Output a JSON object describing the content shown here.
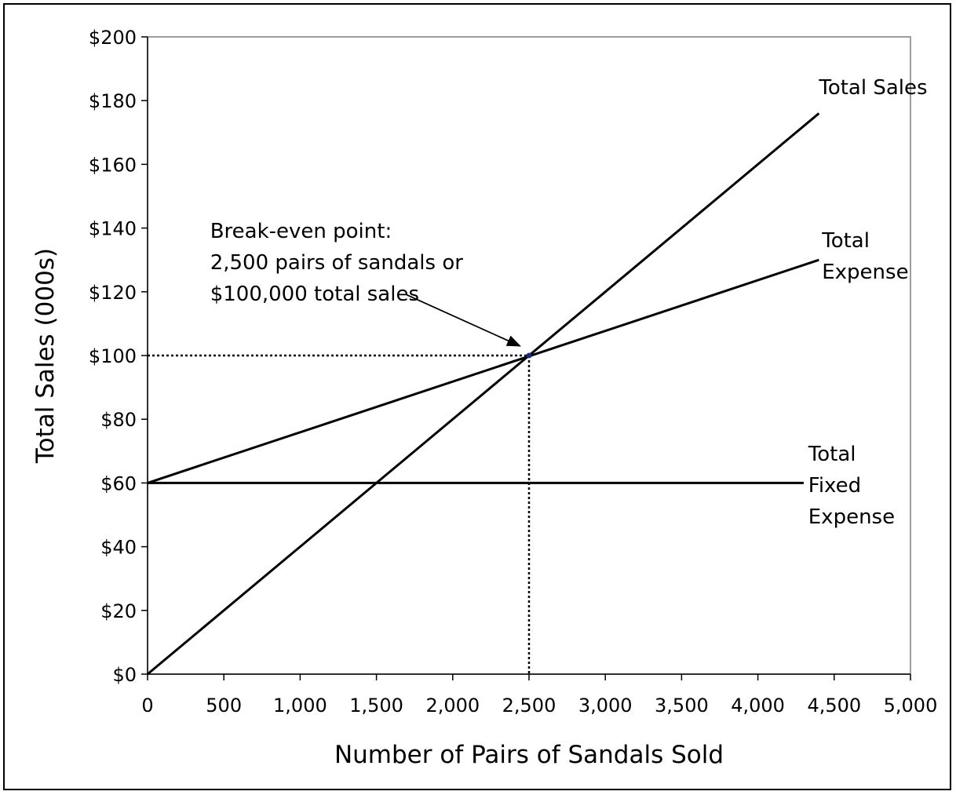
{
  "chart_data": {
    "type": "line",
    "title": "",
    "xlabel": "Number of Pairs of Sandals Sold",
    "ylabel": "Total Sales (000s)",
    "xlim": [
      0,
      5000
    ],
    "ylim": [
      0,
      200
    ],
    "x_ticks": [
      0,
      500,
      1000,
      1500,
      2000,
      2500,
      3000,
      3500,
      4000,
      4500,
      5000
    ],
    "x_tick_labels": [
      "0",
      "500",
      "1,000",
      "1,500",
      "2,000",
      "2,500",
      "3,000",
      "3,500",
      "4,000",
      "4,500",
      "5,000"
    ],
    "y_ticks": [
      0,
      20,
      40,
      60,
      80,
      100,
      120,
      140,
      160,
      180,
      200
    ],
    "y_tick_labels": [
      "$0",
      "$20",
      "$40",
      "$60",
      "$80",
      "$100",
      "$120",
      "$140",
      "$160",
      "$180",
      "$200"
    ],
    "grid": false,
    "legend": "none",
    "series": [
      {
        "name": "Total Sales",
        "x": [
          0,
          4400
        ],
        "y": [
          0,
          176
        ]
      },
      {
        "name": "Total Expense",
        "x": [
          0,
          4400
        ],
        "y": [
          60,
          130
        ]
      },
      {
        "name": "Total Fixed Expense",
        "x": [
          0,
          4300
        ],
        "y": [
          60,
          60
        ]
      }
    ],
    "series_labels": [
      {
        "lines": [
          "Total Sales"
        ],
        "x": 4400,
        "y": 182
      },
      {
        "lines": [
          "Total",
          "Expense"
        ],
        "x": 4420,
        "y": 134
      },
      {
        "lines": [
          "Total",
          "Fixed",
          "Expense"
        ],
        "x": 4330,
        "y": 67
      }
    ],
    "break_even": {
      "x": 2500,
      "y": 100,
      "annotation": [
        "Break-even point:",
        "2,500 pairs of sandals or",
        "$100,000 total sales"
      ],
      "annotation_pos": {
        "x": 410,
        "y": 137
      },
      "arrow_from": {
        "x": 1700,
        "y": 119
      },
      "arrow_to": {
        "x": 2440,
        "y": 103
      }
    },
    "colors": {
      "line": "#000000",
      "axis": "#000000",
      "frame": "#7f7f7f",
      "marker": "#1f2a7a"
    }
  }
}
